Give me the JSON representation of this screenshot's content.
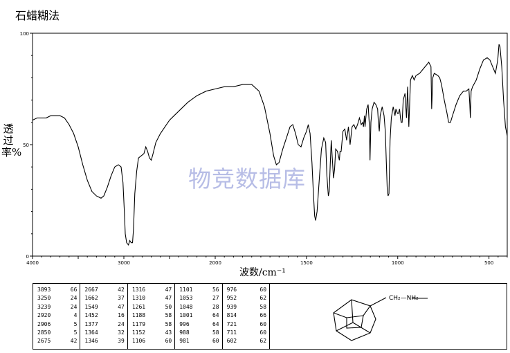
{
  "page_title": "石蜡糊法",
  "watermark": "物竞数据库",
  "chart_data": {
    "type": "line",
    "title": "",
    "xlabel": "波数/cm⁻¹",
    "ylabel": "透过率%",
    "xlim": [
      4000,
      400
    ],
    "ylim": [
      0,
      100
    ],
    "x_ticks": [
      4000,
      3000,
      2000,
      1500,
      1000,
      500
    ],
    "y_ticks": [
      0,
      50,
      100
    ],
    "grid": false,
    "series": [
      {
        "color": "#000000",
        "points": [
          [
            4000,
            61
          ],
          [
            3950,
            62
          ],
          [
            3900,
            62
          ],
          [
            3850,
            62
          ],
          [
            3800,
            63
          ],
          [
            3700,
            63
          ],
          [
            3650,
            62
          ],
          [
            3600,
            59
          ],
          [
            3550,
            55
          ],
          [
            3500,
            49
          ],
          [
            3450,
            41
          ],
          [
            3400,
            34
          ],
          [
            3350,
            29
          ],
          [
            3300,
            27
          ],
          [
            3250,
            26
          ],
          [
            3220,
            27
          ],
          [
            3180,
            31
          ],
          [
            3140,
            36
          ],
          [
            3100,
            40
          ],
          [
            3060,
            41
          ],
          [
            3030,
            40
          ],
          [
            3010,
            33
          ],
          [
            2995,
            20
          ],
          [
            2985,
            10
          ],
          [
            2970,
            6
          ],
          [
            2950,
            5
          ],
          [
            2935,
            7
          ],
          [
            2920,
            6
          ],
          [
            2905,
            6
          ],
          [
            2895,
            12
          ],
          [
            2880,
            28
          ],
          [
            2860,
            38
          ],
          [
            2840,
            44
          ],
          [
            2810,
            45
          ],
          [
            2780,
            46
          ],
          [
            2760,
            49
          ],
          [
            2740,
            47
          ],
          [
            2720,
            44
          ],
          [
            2700,
            43
          ],
          [
            2680,
            46
          ],
          [
            2650,
            51
          ],
          [
            2600,
            55
          ],
          [
            2550,
            58
          ],
          [
            2500,
            61
          ],
          [
            2400,
            65
          ],
          [
            2300,
            69
          ],
          [
            2200,
            72
          ],
          [
            2100,
            74
          ],
          [
            2000,
            75
          ],
          [
            1950,
            76
          ],
          [
            1900,
            76
          ],
          [
            1850,
            77
          ],
          [
            1800,
            77
          ],
          [
            1760,
            74
          ],
          [
            1730,
            67
          ],
          [
            1700,
            55
          ],
          [
            1680,
            45
          ],
          [
            1665,
            41
          ],
          [
            1650,
            42
          ],
          [
            1630,
            48
          ],
          [
            1610,
            53
          ],
          [
            1590,
            58
          ],
          [
            1575,
            59
          ],
          [
            1560,
            55
          ],
          [
            1545,
            50
          ],
          [
            1530,
            49
          ],
          [
            1515,
            53
          ],
          [
            1500,
            56
          ],
          [
            1490,
            59
          ],
          [
            1480,
            55
          ],
          [
            1470,
            42
          ],
          [
            1462,
            28
          ],
          [
            1455,
            18
          ],
          [
            1450,
            16
          ],
          [
            1442,
            20
          ],
          [
            1430,
            34
          ],
          [
            1418,
            48
          ],
          [
            1405,
            53
          ],
          [
            1395,
            51
          ],
          [
            1388,
            36
          ],
          [
            1380,
            27
          ],
          [
            1375,
            29
          ],
          [
            1370,
            41
          ],
          [
            1364,
            52
          ],
          [
            1360,
            46
          ],
          [
            1352,
            35
          ],
          [
            1346,
            39
          ],
          [
            1340,
            48
          ],
          [
            1330,
            47
          ],
          [
            1320,
            43
          ],
          [
            1316,
            47
          ],
          [
            1310,
            47
          ],
          [
            1300,
            56
          ],
          [
            1290,
            57
          ],
          [
            1280,
            52
          ],
          [
            1270,
            58
          ],
          [
            1261,
            50
          ],
          [
            1250,
            58
          ],
          [
            1240,
            59
          ],
          [
            1230,
            57
          ],
          [
            1220,
            59
          ],
          [
            1210,
            62
          ],
          [
            1200,
            59
          ],
          [
            1192,
            60
          ],
          [
            1188,
            58
          ],
          [
            1182,
            63
          ],
          [
            1179,
            58
          ],
          [
            1170,
            66
          ],
          [
            1162,
            68
          ],
          [
            1155,
            58
          ],
          [
            1152,
            43
          ],
          [
            1147,
            60
          ],
          [
            1140,
            66
          ],
          [
            1130,
            69
          ],
          [
            1120,
            68
          ],
          [
            1110,
            66
          ],
          [
            1106,
            60
          ],
          [
            1101,
            56
          ],
          [
            1096,
            63
          ],
          [
            1085,
            67
          ],
          [
            1075,
            63
          ],
          [
            1068,
            56
          ],
          [
            1062,
            41
          ],
          [
            1058,
            31
          ],
          [
            1053,
            27
          ],
          [
            1048,
            28
          ],
          [
            1042,
            52
          ],
          [
            1035,
            62
          ],
          [
            1025,
            67
          ],
          [
            1015,
            63
          ],
          [
            1010,
            66
          ],
          [
            1001,
            64
          ],
          [
            996,
            64
          ],
          [
            990,
            66
          ],
          [
            985,
            62
          ],
          [
            981,
            60
          ],
          [
            976,
            60
          ],
          [
            970,
            70
          ],
          [
            960,
            73
          ],
          [
            955,
            66
          ],
          [
            952,
            62
          ],
          [
            946,
            76
          ],
          [
            939,
            58
          ],
          [
            930,
            79
          ],
          [
            920,
            81
          ],
          [
            910,
            79
          ],
          [
            900,
            81
          ],
          [
            880,
            82
          ],
          [
            860,
            84
          ],
          [
            840,
            86
          ],
          [
            830,
            87
          ],
          [
            818,
            85
          ],
          [
            814,
            66
          ],
          [
            808,
            80
          ],
          [
            800,
            82
          ],
          [
            780,
            81
          ],
          [
            770,
            80
          ],
          [
            760,
            77
          ],
          [
            745,
            70
          ],
          [
            730,
            64
          ],
          [
            721,
            60
          ],
          [
            711,
            60
          ],
          [
            700,
            63
          ],
          [
            680,
            68
          ],
          [
            660,
            72
          ],
          [
            640,
            74
          ],
          [
            625,
            74
          ],
          [
            610,
            75
          ],
          [
            605,
            68
          ],
          [
            602,
            62
          ],
          [
            598,
            74
          ],
          [
            590,
            76
          ],
          [
            570,
            79
          ],
          [
            550,
            84
          ],
          [
            530,
            88
          ],
          [
            510,
            89
          ],
          [
            495,
            88
          ],
          [
            480,
            85
          ],
          [
            465,
            82
          ],
          [
            452,
            88
          ],
          [
            445,
            95
          ],
          [
            440,
            94
          ],
          [
            430,
            85
          ],
          [
            420,
            70
          ],
          [
            410,
            58
          ],
          [
            400,
            54
          ]
        ]
      }
    ]
  },
  "peak_table": {
    "columns": [
      [
        [
          "3893",
          "66"
        ],
        [
          "3250",
          "24"
        ],
        [
          "3239",
          "24"
        ],
        [
          "2920",
          "4"
        ],
        [
          "2906",
          "5"
        ],
        [
          "2850",
          "5"
        ],
        [
          "2675",
          "42"
        ]
      ],
      [
        [
          "2667",
          "42"
        ],
        [
          "1662",
          "37"
        ],
        [
          "1549",
          "47"
        ],
        [
          "1452",
          "16"
        ],
        [
          "1377",
          "24"
        ],
        [
          "1364",
          "32"
        ],
        [
          "1346",
          "39"
        ]
      ],
      [
        [
          "1316",
          "47"
        ],
        [
          "1310",
          "47"
        ],
        [
          "1261",
          "50"
        ],
        [
          "1188",
          "58"
        ],
        [
          "1179",
          "58"
        ],
        [
          "1152",
          "43"
        ],
        [
          "1106",
          "60"
        ]
      ],
      [
        [
          "1101",
          "56"
        ],
        [
          "1053",
          "27"
        ],
        [
          "1048",
          "28"
        ],
        [
          "1001",
          "64"
        ],
        [
          "996",
          "64"
        ],
        [
          "988",
          "58"
        ],
        [
          "981",
          "60"
        ]
      ],
      [
        [
          "976",
          "60"
        ],
        [
          "952",
          "62"
        ],
        [
          "939",
          "58"
        ],
        [
          "814",
          "66"
        ],
        [
          "721",
          "60"
        ],
        [
          "711",
          "60"
        ],
        [
          "602",
          "62"
        ]
      ]
    ]
  },
  "structure": {
    "label": "CH₂—NH₂"
  }
}
